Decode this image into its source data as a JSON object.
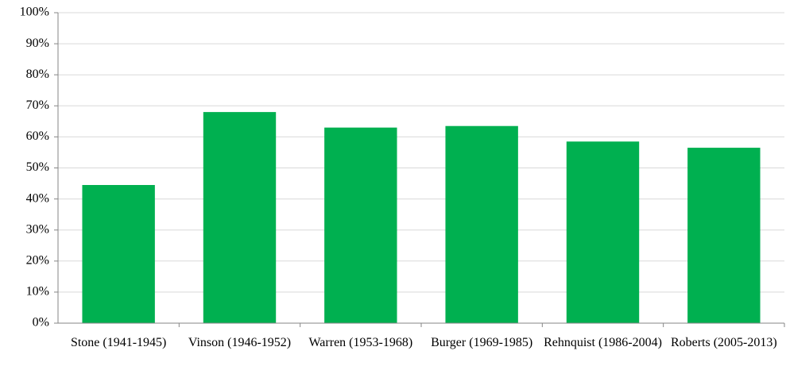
{
  "chart_data": {
    "type": "bar",
    "categories": [
      "Stone (1941-1945)",
      "Vinson (1946-1952)",
      "Warren (1953-1968)",
      "Burger (1969-1985)",
      "Rehnquist (1986-2004)",
      "Roberts (2005-2013)"
    ],
    "values": [
      44.5,
      68,
      63,
      63.5,
      58.5,
      56.5
    ],
    "color": "#00b050",
    "ylim": [
      0,
      100
    ],
    "yticks": [
      {
        "value": 0,
        "label": "0%"
      },
      {
        "value": 10,
        "label": "10%"
      },
      {
        "value": 20,
        "label": "20%"
      },
      {
        "value": 30,
        "label": "30%"
      },
      {
        "value": 40,
        "label": "40%"
      },
      {
        "value": 50,
        "label": "50%"
      },
      {
        "value": 60,
        "label": "60%"
      },
      {
        "value": 70,
        "label": "70%"
      },
      {
        "value": 80,
        "label": "80%"
      },
      {
        "value": 90,
        "label": "90%"
      },
      {
        "value": 100,
        "label": "100%"
      }
    ],
    "grid": true
  }
}
